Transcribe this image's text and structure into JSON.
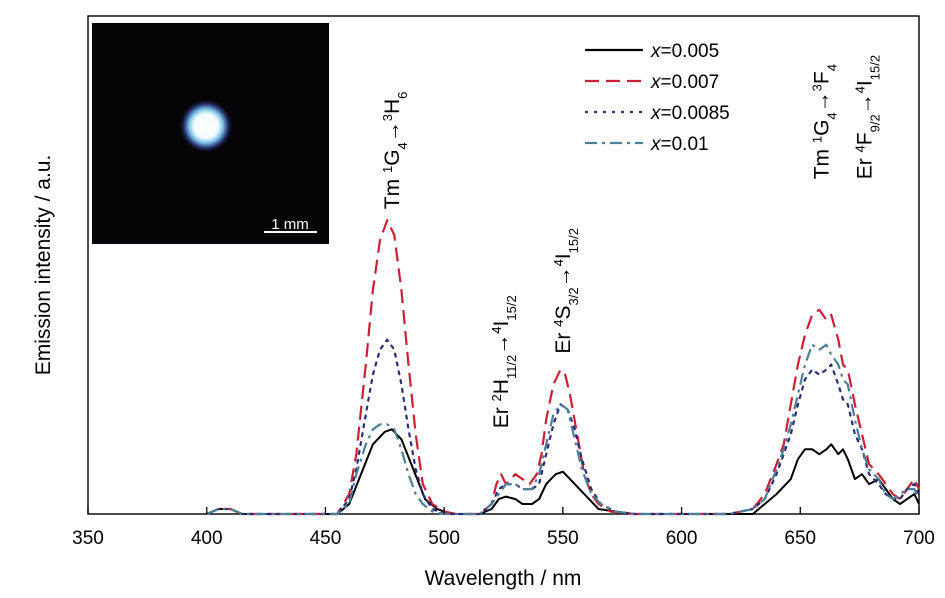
{
  "chart_data": {
    "type": "line",
    "xlabel": "Wavelength / nm",
    "ylabel": "Emission intensity / a.u.",
    "xlim": [
      350,
      700
    ],
    "ylim": [
      0,
      1.0
    ],
    "xticks": [
      350,
      400,
      450,
      500,
      550,
      600,
      650,
      700
    ],
    "xtick_labels": [
      "350",
      "400",
      "450",
      "500",
      "550",
      "600",
      "650",
      "700"
    ],
    "legend_position": "top-right",
    "legend_prefix": "x",
    "series": [
      {
        "name": "=0.005",
        "color": "#000000",
        "style": "solid",
        "x": [
          400,
          405,
          410,
          415,
          455,
          460,
          465,
          470,
          475,
          478,
          482,
          487,
          492,
          497,
          503,
          507,
          510,
          515,
          520,
          523,
          526,
          530,
          533,
          537,
          540,
          543,
          547,
          550,
          553,
          557,
          561,
          565,
          572,
          580,
          600,
          620,
          630,
          635,
          640,
          643,
          646,
          649,
          652,
          655,
          658,
          661,
          663,
          666,
          668,
          670,
          673,
          676,
          679,
          683,
          686,
          689,
          692,
          695,
          698,
          700
        ],
        "y": [
          0.0,
          0.01,
          0.01,
          0.0,
          0.0,
          0.02,
          0.08,
          0.14,
          0.165,
          0.17,
          0.15,
          0.09,
          0.03,
          0.01,
          0.0,
          0.0,
          0.0,
          0.0,
          0.01,
          0.03,
          0.035,
          0.03,
          0.02,
          0.02,
          0.03,
          0.06,
          0.08,
          0.085,
          0.07,
          0.05,
          0.03,
          0.01,
          0.005,
          0.0,
          0.0,
          0.0,
          0.0,
          0.02,
          0.04,
          0.055,
          0.07,
          0.11,
          0.13,
          0.13,
          0.12,
          0.13,
          0.14,
          0.12,
          0.13,
          0.11,
          0.07,
          0.08,
          0.06,
          0.07,
          0.05,
          0.03,
          0.02,
          0.03,
          0.04,
          0.02
        ]
      },
      {
        "name": "=0.007",
        "color": "#cc1f33",
        "style": "dashed",
        "x": [
          400,
          405,
          410,
          415,
          455,
          460,
          463,
          467,
          470,
          473,
          476,
          479,
          482,
          485,
          488,
          491,
          495,
          500,
          505,
          510,
          515,
          520,
          522,
          524,
          526,
          528,
          530,
          533,
          536,
          539,
          541,
          543,
          546,
          549,
          551,
          553,
          556,
          559,
          562,
          565,
          570,
          580,
          600,
          620,
          630,
          635,
          640,
          643,
          646,
          649,
          652,
          655,
          658,
          661,
          663,
          666,
          668,
          670,
          673,
          676,
          679,
          683,
          686,
          689,
          692,
          695,
          698,
          700
        ],
        "y": [
          0.0,
          0.01,
          0.01,
          0.0,
          0.0,
          0.04,
          0.12,
          0.3,
          0.45,
          0.55,
          0.59,
          0.56,
          0.45,
          0.3,
          0.16,
          0.06,
          0.02,
          0.005,
          0.0,
          0.0,
          0.0,
          0.02,
          0.06,
          0.08,
          0.06,
          0.07,
          0.08,
          0.07,
          0.06,
          0.08,
          0.12,
          0.19,
          0.26,
          0.29,
          0.28,
          0.24,
          0.16,
          0.08,
          0.04,
          0.02,
          0.005,
          0.0,
          0.0,
          0.0,
          0.01,
          0.04,
          0.1,
          0.14,
          0.22,
          0.3,
          0.36,
          0.4,
          0.41,
          0.39,
          0.4,
          0.35,
          0.3,
          0.29,
          0.22,
          0.16,
          0.1,
          0.08,
          0.06,
          0.04,
          0.03,
          0.05,
          0.07,
          0.05
        ]
      },
      {
        "name": "=0.0085",
        "color": "#2b2b7a",
        "style": "dotted",
        "x": [
          400,
          405,
          410,
          415,
          455,
          460,
          463,
          467,
          470,
          473,
          476,
          479,
          482,
          485,
          488,
          491,
          495,
          500,
          505,
          510,
          515,
          520,
          523,
          526,
          530,
          533,
          537,
          540,
          543,
          546,
          549,
          552,
          555,
          558,
          562,
          566,
          572,
          580,
          600,
          620,
          630,
          635,
          640,
          643,
          646,
          649,
          652,
          655,
          658,
          661,
          663,
          666,
          668,
          670,
          673,
          676,
          679,
          683,
          686,
          689,
          692,
          695,
          698,
          700
        ],
        "y": [
          0.0,
          0.01,
          0.01,
          0.0,
          0.0,
          0.03,
          0.09,
          0.2,
          0.28,
          0.33,
          0.35,
          0.33,
          0.26,
          0.17,
          0.09,
          0.04,
          0.01,
          0.0,
          0.0,
          0.0,
          0.0,
          0.02,
          0.05,
          0.06,
          0.06,
          0.05,
          0.05,
          0.06,
          0.12,
          0.18,
          0.22,
          0.21,
          0.17,
          0.11,
          0.05,
          0.02,
          0.005,
          0.0,
          0.0,
          0.0,
          0.01,
          0.03,
          0.08,
          0.12,
          0.16,
          0.22,
          0.27,
          0.29,
          0.28,
          0.29,
          0.3,
          0.26,
          0.23,
          0.22,
          0.16,
          0.13,
          0.08,
          0.06,
          0.04,
          0.03,
          0.03,
          0.05,
          0.06,
          0.04
        ]
      },
      {
        "name": "=0.01",
        "color": "#4a7f96",
        "style": "dashdot",
        "x": [
          400,
          405,
          410,
          415,
          455,
          460,
          463,
          467,
          470,
          473,
          476,
          479,
          482,
          485,
          488,
          491,
          495,
          500,
          505,
          510,
          515,
          520,
          523,
          526,
          530,
          533,
          537,
          540,
          543,
          546,
          549,
          552,
          555,
          558,
          562,
          566,
          572,
          580,
          600,
          620,
          630,
          635,
          640,
          643,
          646,
          649,
          652,
          655,
          658,
          661,
          663,
          666,
          668,
          670,
          673,
          676,
          679,
          683,
          686,
          689,
          692,
          695,
          698,
          700
        ],
        "y": [
          0.0,
          0.01,
          0.01,
          0.0,
          0.0,
          0.02,
          0.08,
          0.14,
          0.17,
          0.18,
          0.18,
          0.17,
          0.13,
          0.08,
          0.04,
          0.02,
          0.005,
          0.0,
          0.0,
          0.0,
          0.0,
          0.02,
          0.04,
          0.06,
          0.06,
          0.05,
          0.05,
          0.08,
          0.14,
          0.2,
          0.22,
          0.21,
          0.15,
          0.09,
          0.04,
          0.02,
          0.005,
          0.0,
          0.0,
          0.0,
          0.01,
          0.03,
          0.09,
          0.13,
          0.18,
          0.24,
          0.3,
          0.34,
          0.33,
          0.34,
          0.32,
          0.3,
          0.27,
          0.26,
          0.19,
          0.13,
          0.09,
          0.07,
          0.04,
          0.03,
          0.04,
          0.05,
          0.05,
          0.03
        ]
      }
    ],
    "annotations": [
      {
        "parts": [
          [
            "n",
            "Tm "
          ],
          [
            "sup",
            "1"
          ],
          [
            "n",
            "G"
          ],
          [
            "sub",
            "4"
          ],
          [
            "n",
            "→"
          ],
          [
            "sup",
            "3"
          ],
          [
            "n",
            "H"
          ],
          [
            "sub",
            "6"
          ]
        ],
        "at": [
          478,
          0.6
        ]
      },
      {
        "parts": [
          [
            "n",
            "Er "
          ],
          [
            "sup",
            "2"
          ],
          [
            "n",
            "H"
          ],
          [
            "sub",
            "11/2"
          ],
          [
            "n",
            "→"
          ],
          [
            "sup",
            "4"
          ],
          [
            "n",
            "I"
          ],
          [
            "sub",
            "15/2"
          ]
        ],
        "at": [
          524,
          0.16
        ]
      },
      {
        "parts": [
          [
            "n",
            "Er "
          ],
          [
            "sup",
            "4"
          ],
          [
            "n",
            "S"
          ],
          [
            "sub",
            "3/2"
          ],
          [
            "n",
            "→"
          ],
          [
            "sup",
            "4"
          ],
          [
            "n",
            "I"
          ],
          [
            "sub",
            "15/2"
          ]
        ],
        "at": [
          550,
          0.31
        ]
      },
      {
        "parts": [
          [
            "n",
            "Tm "
          ],
          [
            "sup",
            "1"
          ],
          [
            "n",
            "G"
          ],
          [
            "sub",
            "4"
          ],
          [
            "n",
            "→"
          ],
          [
            "sup",
            "3"
          ],
          [
            "n",
            "F"
          ],
          [
            "sub",
            "4"
          ]
        ],
        "at": [
          659,
          0.66
        ]
      },
      {
        "parts": [
          [
            "n",
            "Er "
          ],
          [
            "sup",
            "4"
          ],
          [
            "n",
            "F"
          ],
          [
            "sub",
            "9/2"
          ],
          [
            "n",
            "→"
          ],
          [
            "sup",
            "4"
          ],
          [
            "n",
            "I"
          ],
          [
            "sub",
            "15/2"
          ]
        ],
        "at": [
          677,
          0.66
        ]
      }
    ],
    "inset": {
      "type": "photo",
      "scale_bar_label": "1 mm"
    },
    "grid": false
  }
}
